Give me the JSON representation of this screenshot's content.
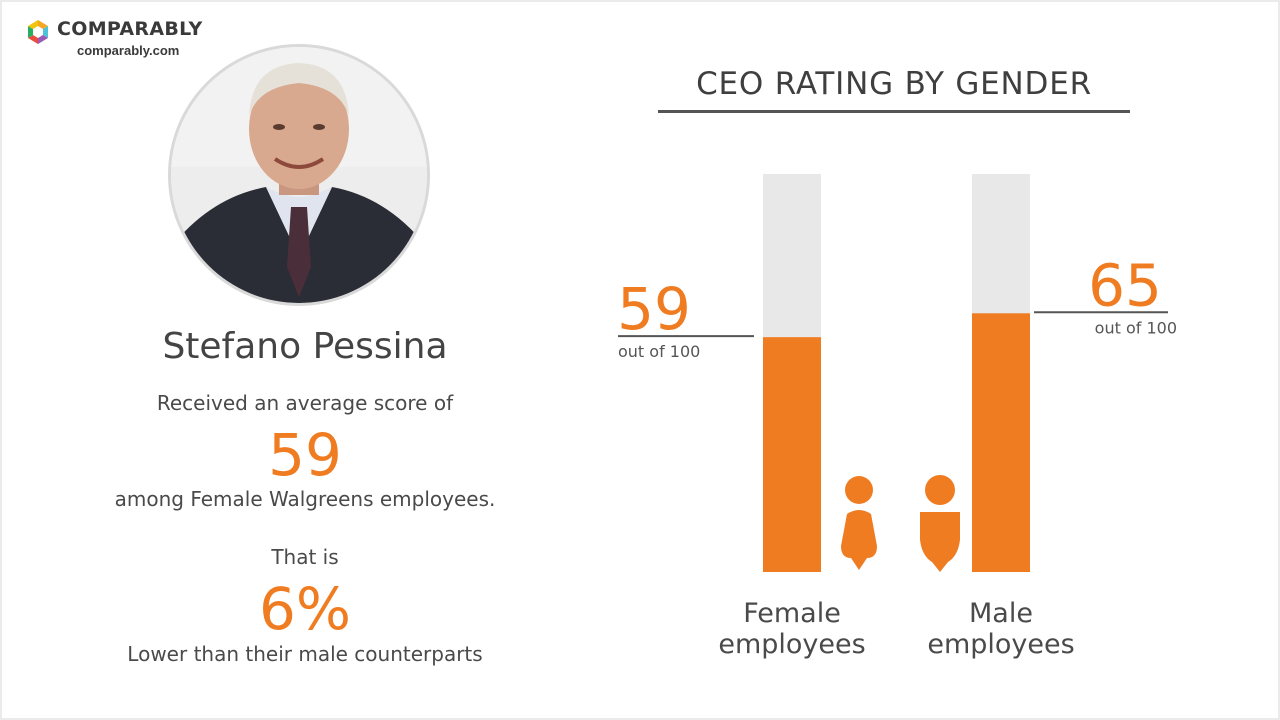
{
  "brand": {
    "name": "COMPARABLY",
    "url": "comparably.com"
  },
  "ceo": {
    "name": "Stefano Pessina"
  },
  "summary": {
    "line1": "Received an average score of",
    "score": "59",
    "line2": "among Female Walgreens employees.",
    "line3": "That is",
    "percent": "6%",
    "line4": "Lower than their male counterparts"
  },
  "colors": {
    "accent": "#f07c22",
    "track": "#e8e8e8"
  },
  "chart_data": {
    "type": "bar",
    "title": "CEO RATING BY GENDER",
    "categories": [
      "Female employees",
      "Male employees"
    ],
    "category_lines": [
      [
        "Female",
        "employees"
      ],
      [
        "Male",
        "employees"
      ]
    ],
    "values": [
      59,
      65
    ],
    "value_labels": [
      "59",
      "65"
    ],
    "unit_label": "out of 100",
    "ylim": [
      0,
      100
    ],
    "icons": [
      "female-person-icon",
      "male-person-icon"
    ]
  }
}
